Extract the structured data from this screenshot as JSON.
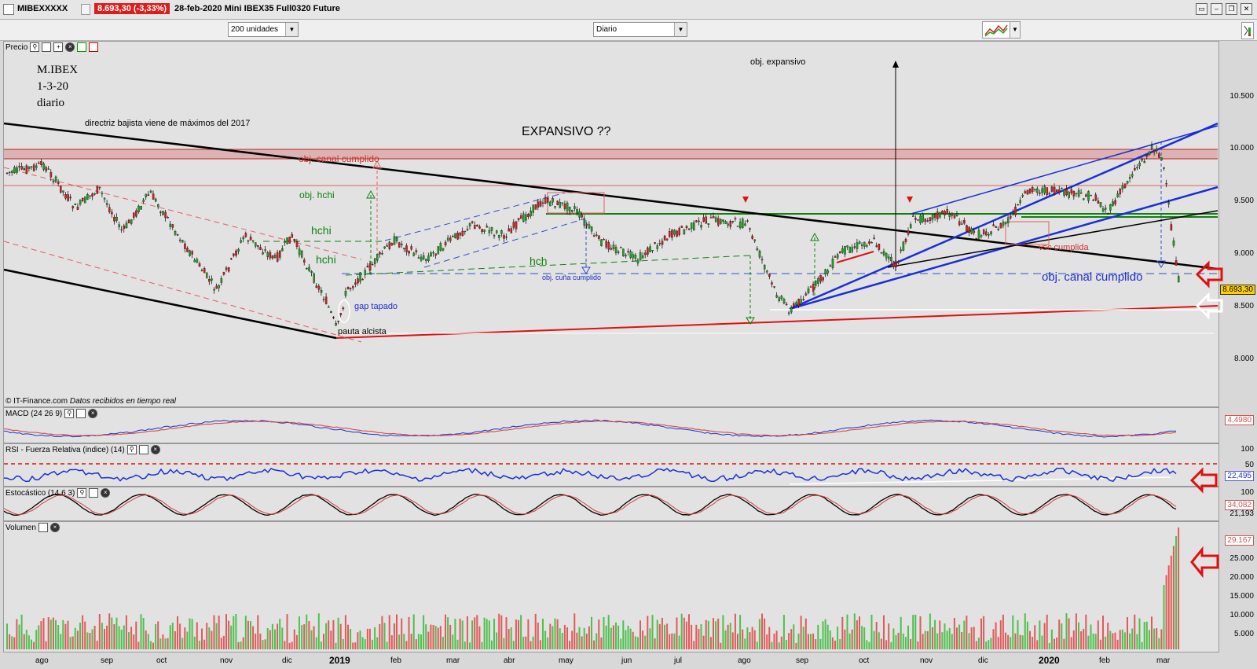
{
  "titlebar": {
    "symbol": "MIBEXXXXX",
    "price_badge": "8.693,30 (-3,33%)",
    "description": "28-feb-2020 Mini IBEX35 Full0320 Future"
  },
  "toolbar": {
    "units_select": "200 unidades",
    "period_select": "Diario"
  },
  "price_panel": {
    "title": "Precio",
    "footer": "© IT-Finance.com",
    "footer_italic": "Datos recibidos en tiempo real",
    "y_ticks": [
      "10.500",
      "10.000",
      "9.500",
      "9.000",
      "8.500",
      "8.000"
    ],
    "last_price": "8.693,30"
  },
  "annotations": {
    "title1": "M.IBEX",
    "title2": "1-3-20",
    "title3": "diario",
    "directriz": "directriz bajista viene de máximos del 2017",
    "expansivo": "EXPANSIVO ??",
    "obj_expansivo": "obj. expansivo",
    "obj_canal_top": "obj. canal cumplido",
    "obj_hchi": "obj. hchi",
    "hchi1": "hchi",
    "hchi2": "hchi",
    "hch": "hch",
    "obj_cuna": "obj. cuña cumplido",
    "gap_tapado": "gap tapado",
    "pauta_alcista": "pauta alcista",
    "vsc_cumplida": "vsc cumplida",
    "obj_canal_right": "obj. canal cumplido"
  },
  "macd_panel": {
    "title": "MACD (24 26 9)",
    "value": "4,4980"
  },
  "rsi_panel": {
    "title": "RSI - Fuerza Relativa (indice) (14)",
    "y_ticks": [
      "100",
      "50"
    ],
    "value": "22,495"
  },
  "stoch_panel": {
    "title": "Estocástico (14 6 3)",
    "y_ticks": [
      "100"
    ],
    "value1": "34,082",
    "value2": "21,193"
  },
  "volume_panel": {
    "title": "Volumen",
    "y_ticks": [
      "25.000",
      "20.000",
      "15.000",
      "10.000",
      "5.000"
    ],
    "value": "29.167"
  },
  "x_axis": [
    {
      "label": "ago",
      "bold": false
    },
    {
      "label": "sep",
      "bold": false
    },
    {
      "label": "oct",
      "bold": false
    },
    {
      "label": "nov",
      "bold": false
    },
    {
      "label": "dic",
      "bold": false
    },
    {
      "label": "2019",
      "bold": true
    },
    {
      "label": "feb",
      "bold": false
    },
    {
      "label": "mar",
      "bold": false
    },
    {
      "label": "abr",
      "bold": false
    },
    {
      "label": "may",
      "bold": false
    },
    {
      "label": "jun",
      "bold": false
    },
    {
      "label": "jul",
      "bold": false
    },
    {
      "label": "ago",
      "bold": false
    },
    {
      "label": "sep",
      "bold": false
    },
    {
      "label": "oct",
      "bold": false
    },
    {
      "label": "nov",
      "bold": false
    },
    {
      "label": "dic",
      "bold": false
    },
    {
      "label": "2020",
      "bold": true
    },
    {
      "label": "feb",
      "bold": false
    },
    {
      "label": "mar",
      "bold": false
    }
  ],
  "colors": {
    "price_badge": "#d81e1e",
    "up_candle": "#22a022",
    "down_candle": "#d02020",
    "channel_blue": "#1a2fd6",
    "trend_black": "#000000",
    "support_red": "#e01010"
  }
}
